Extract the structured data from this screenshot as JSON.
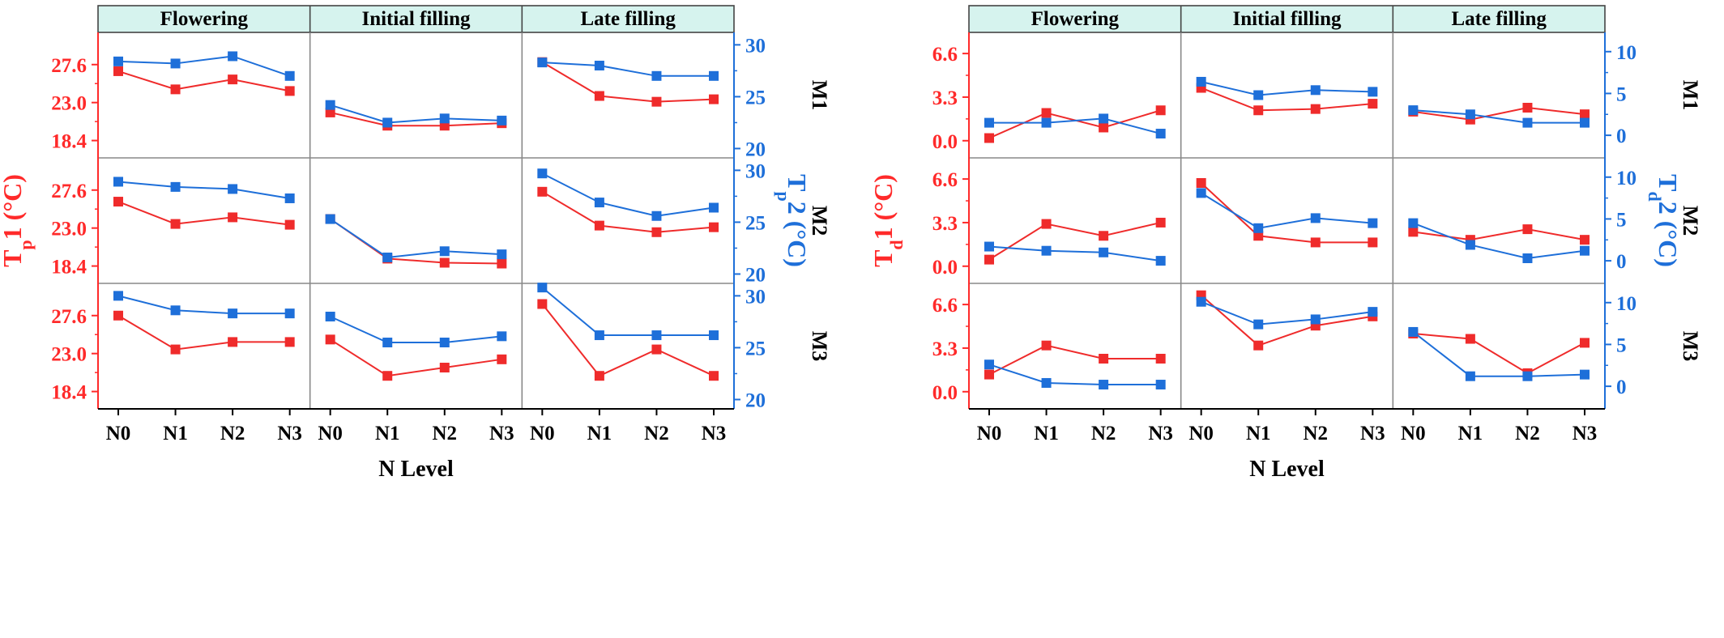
{
  "colors": {
    "series1": "#ef2b2b",
    "series2": "#1e6fd9",
    "strip_bg": "#d6f3ee",
    "axis1": "#ff2a2a",
    "axis2": "#1e6fd9",
    "frame": "#444444"
  },
  "chart_data": [
    {
      "type": "line",
      "stages": [
        "Flowering",
        "Initial filling",
        "Late filling"
      ],
      "rows": [
        "M1",
        "M2",
        "M3"
      ],
      "categories": [
        "N0",
        "N1",
        "N2",
        "N3"
      ],
      "xlabel": "N Level",
      "y1": {
        "label_main": "T",
        "label_sub": "p",
        "label_rest": "1 (°C)",
        "ticks": [
          "27.6",
          "23.0",
          "18.4"
        ],
        "tick_values": [
          27.6,
          23.0,
          18.4
        ],
        "ylim": [
          16.3,
          31.5
        ]
      },
      "y2": {
        "label_main": "T",
        "label_sub": "p",
        "label_rest": "2 (°C)",
        "ticks": [
          "30",
          "25",
          "20"
        ],
        "tick_values": [
          30,
          25,
          20
        ],
        "ylim": [
          19.1,
          31.2
        ]
      },
      "panels": [
        {
          "row": "M1",
          "stage": "Flowering",
          "series1": [
            26.8,
            24.6,
            25.8,
            24.4
          ],
          "series2": [
            28.4,
            28.2,
            28.9,
            27.0
          ]
        },
        {
          "row": "M1",
          "stage": "Initial filling",
          "series1": [
            21.8,
            20.2,
            20.2,
            20.5
          ],
          "series2": [
            24.2,
            22.5,
            22.9,
            22.7
          ]
        },
        {
          "row": "M1",
          "stage": "Late filling",
          "series1": [
            27.9,
            23.8,
            23.1,
            23.4
          ],
          "series2": [
            28.3,
            28.0,
            27.0,
            27.0
          ]
        },
        {
          "row": "M2",
          "stage": "Flowering",
          "series1": [
            26.2,
            23.5,
            24.3,
            23.4
          ],
          "series2": [
            28.9,
            28.4,
            28.2,
            27.3
          ]
        },
        {
          "row": "M2",
          "stage": "Initial filling",
          "series1": [
            24.1,
            19.3,
            18.8,
            18.7
          ],
          "series2": [
            25.3,
            21.6,
            22.2,
            21.9
          ]
        },
        {
          "row": "M2",
          "stage": "Late filling",
          "series1": [
            27.4,
            23.3,
            22.5,
            23.1
          ],
          "series2": [
            29.7,
            26.9,
            25.6,
            26.4
          ]
        },
        {
          "row": "M3",
          "stage": "Flowering",
          "series1": [
            27.6,
            23.5,
            24.4,
            24.4
          ],
          "series2": [
            30.0,
            28.6,
            28.3,
            28.3
          ]
        },
        {
          "row": "M3",
          "stage": "Initial filling",
          "series1": [
            24.7,
            20.3,
            21.3,
            22.3
          ],
          "series2": [
            28.0,
            25.5,
            25.5,
            26.1
          ]
        },
        {
          "row": "M3",
          "stage": "Late filling",
          "series1": [
            29.0,
            20.3,
            23.5,
            20.3
          ],
          "series2": [
            30.8,
            26.2,
            26.2,
            26.2
          ]
        }
      ]
    },
    {
      "type": "line",
      "stages": [
        "Flowering",
        "Initial filling",
        "Late filling"
      ],
      "rows": [
        "M1",
        "M2",
        "M3"
      ],
      "categories": [
        "N0",
        "N1",
        "N2",
        "N3"
      ],
      "xlabel": "N Level",
      "y1": {
        "label_main": "T",
        "label_sub": "d",
        "label_rest": "1 (°C)",
        "ticks": [
          "6.6",
          "3.3",
          "0.0"
        ],
        "tick_values": [
          6.6,
          3.3,
          0.0
        ],
        "ylim": [
          -1.3,
          8.2
        ]
      },
      "y2": {
        "label_main": "T",
        "label_sub": "d",
        "label_rest": "2 (°C)",
        "ticks": [
          "10",
          "5",
          "0"
        ],
        "tick_values": [
          10,
          5,
          0
        ],
        "ylim": [
          -2.7,
          12.3
        ]
      },
      "panels": [
        {
          "row": "M1",
          "stage": "Flowering",
          "series1": [
            0.2,
            2.1,
            1.0,
            2.3
          ],
          "series2": [
            1.5,
            1.5,
            2.0,
            0.2
          ]
        },
        {
          "row": "M1",
          "stage": "Initial filling",
          "series1": [
            4.0,
            2.3,
            2.4,
            2.8
          ],
          "series2": [
            6.4,
            4.8,
            5.4,
            5.2
          ]
        },
        {
          "row": "M1",
          "stage": "Late filling",
          "series1": [
            2.2,
            1.6,
            2.5,
            2.0
          ],
          "series2": [
            3.0,
            2.5,
            1.5,
            1.5
          ]
        },
        {
          "row": "M2",
          "stage": "Flowering",
          "series1": [
            0.5,
            3.2,
            2.3,
            3.3
          ],
          "series2": [
            1.7,
            1.2,
            1.0,
            0.0
          ]
        },
        {
          "row": "M2",
          "stage": "Initial filling",
          "series1": [
            6.3,
            2.3,
            1.8,
            1.8
          ],
          "series2": [
            8.1,
            3.9,
            5.1,
            4.5
          ]
        },
        {
          "row": "M2",
          "stage": "Late filling",
          "series1": [
            2.6,
            2.0,
            2.8,
            2.0
          ],
          "series2": [
            4.5,
            1.9,
            0.3,
            1.2
          ]
        },
        {
          "row": "M3",
          "stage": "Flowering",
          "series1": [
            1.3,
            3.5,
            2.5,
            2.5
          ],
          "series2": [
            2.6,
            0.4,
            0.2,
            0.2
          ]
        },
        {
          "row": "M3",
          "stage": "Initial filling",
          "series1": [
            7.3,
            3.5,
            5.0,
            5.7
          ],
          "series2": [
            10.1,
            7.4,
            8.0,
            8.9
          ]
        },
        {
          "row": "M3",
          "stage": "Late filling",
          "series1": [
            4.4,
            4.0,
            1.4,
            3.7
          ],
          "series2": [
            6.5,
            1.2,
            1.2,
            1.4
          ]
        }
      ]
    }
  ]
}
